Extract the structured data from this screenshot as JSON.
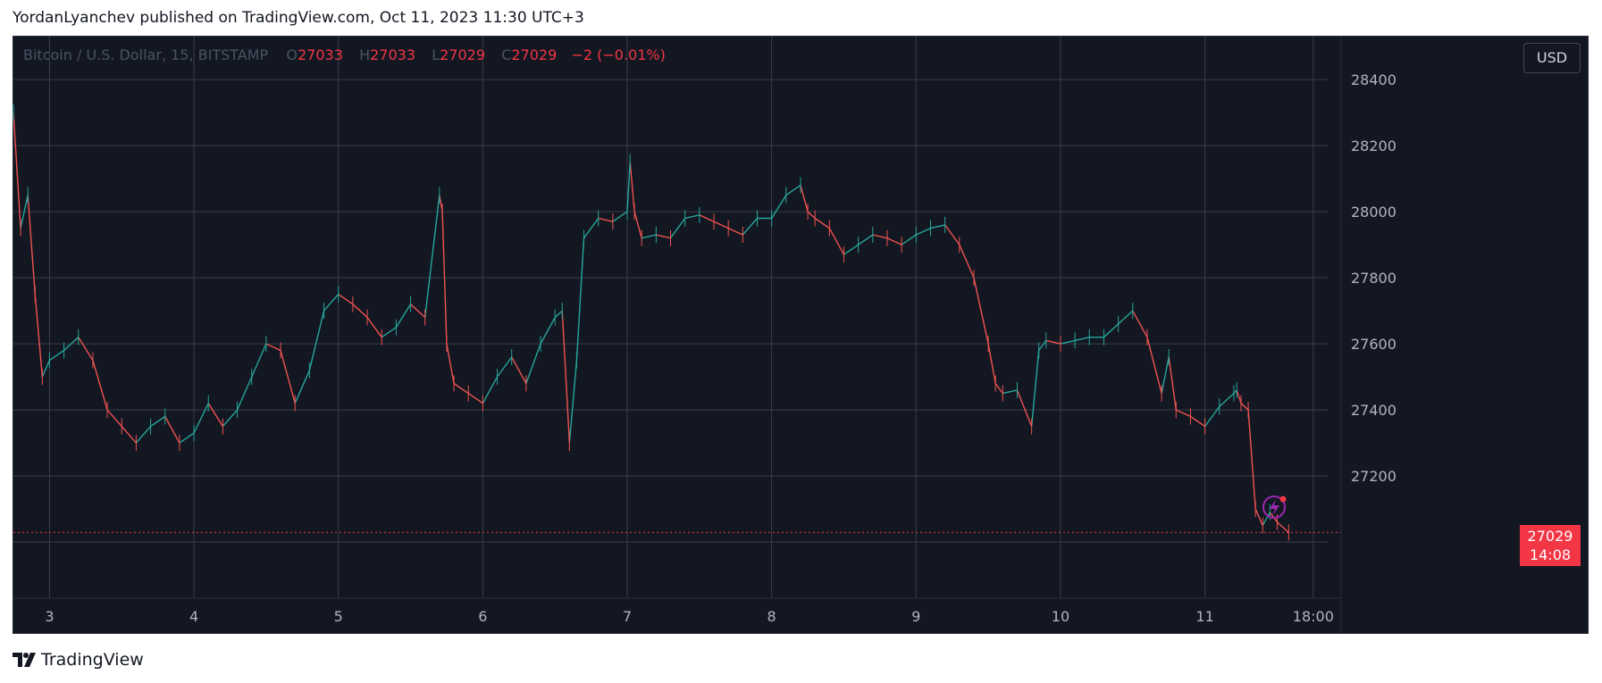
{
  "header": {
    "publisher_line": "YordanLyanchev published on TradingView.com, Oct 11, 2023 11:30 UTC+3"
  },
  "legend": {
    "symbol": "Bitcoin / U.S. Dollar, 15, BITSTAMP",
    "o_label": "O",
    "o_value": "27033",
    "h_label": "H",
    "h_value": "27033",
    "l_label": "L",
    "l_value": "27029",
    "c_label": "C",
    "c_value": "27029",
    "change": "−2 (−0.01%)"
  },
  "currency_button": "USD",
  "price_tag": {
    "price": "27029",
    "countdown": "14:08"
  },
  "footer": {
    "brand": "TradingView"
  },
  "colors": {
    "background": "#131722",
    "up": "#26a69a",
    "down": "#ef5350",
    "grid": "#3a3e4a",
    "accent": "#f23645",
    "lightning": "#9c27b0"
  },
  "chart_data": {
    "type": "line",
    "title": "Bitcoin / U.S. Dollar, 15, BITSTAMP",
    "xlabel": "",
    "ylabel": "",
    "ylim": [
      26830,
      28530
    ],
    "xlim": [
      2.75,
      11.85
    ],
    "grid": true,
    "x_ticks": [
      {
        "x": 3,
        "label": "3"
      },
      {
        "x": 4,
        "label": "4"
      },
      {
        "x": 5,
        "label": "5"
      },
      {
        "x": 6,
        "label": "6"
      },
      {
        "x": 7,
        "label": "7"
      },
      {
        "x": 8,
        "label": "8"
      },
      {
        "x": 9,
        "label": "9"
      },
      {
        "x": 10,
        "label": "10"
      },
      {
        "x": 11,
        "label": "11"
      },
      {
        "x": 11.75,
        "label": "18:00"
      }
    ],
    "y_ticks": [
      27000,
      27200,
      27400,
      27600,
      27800,
      28000,
      28200,
      28400
    ],
    "last_price": 27029,
    "series": [
      {
        "x": [
          2.75,
          2.8,
          2.85,
          2.9,
          2.95,
          3.0,
          3.1,
          3.2,
          3.3,
          3.4,
          3.5,
          3.6,
          3.7,
          3.8,
          3.9,
          4.0,
          4.1,
          4.2,
          4.3,
          4.4,
          4.5,
          4.6,
          4.7,
          4.8,
          4.9,
          5.0,
          5.1,
          5.2,
          5.3,
          5.4,
          5.5,
          5.6,
          5.7,
          5.72,
          5.75,
          5.8,
          5.9,
          6.0,
          6.1,
          6.2,
          6.3,
          6.4,
          6.5,
          6.55,
          6.6,
          6.65,
          6.7,
          6.8,
          6.9,
          7.0,
          7.02,
          7.05,
          7.1,
          7.2,
          7.3,
          7.4,
          7.5,
          7.6,
          7.7,
          7.8,
          7.9,
          8.0,
          8.1,
          8.2,
          8.25,
          8.3,
          8.4,
          8.5,
          8.6,
          8.7,
          8.8,
          8.9,
          9.0,
          9.1,
          9.2,
          9.3,
          9.4,
          9.5,
          9.55,
          9.6,
          9.7,
          9.8,
          9.85,
          9.9,
          10.0,
          10.1,
          10.2,
          10.3,
          10.4,
          10.5,
          10.6,
          10.7,
          10.75,
          10.8,
          10.9,
          11.0,
          11.1,
          11.2,
          11.22,
          11.25,
          11.3,
          11.35,
          11.4,
          11.45,
          11.5,
          11.58
        ],
        "y": [
          28300,
          27950,
          28050,
          27750,
          27500,
          27550,
          27580,
          27620,
          27550,
          27400,
          27350,
          27300,
          27350,
          27380,
          27300,
          27330,
          27420,
          27350,
          27400,
          27500,
          27600,
          27580,
          27420,
          27520,
          27700,
          27750,
          27720,
          27680,
          27620,
          27650,
          27720,
          27680,
          28050,
          28000,
          27600,
          27480,
          27450,
          27420,
          27500,
          27560,
          27480,
          27600,
          27680,
          27700,
          27300,
          27550,
          27920,
          27980,
          27970,
          28000,
          28150,
          28000,
          27920,
          27930,
          27920,
          27980,
          27990,
          27970,
          27950,
          27930,
          27980,
          27980,
          28050,
          28080,
          28000,
          27980,
          27950,
          27870,
          27900,
          27930,
          27920,
          27900,
          27930,
          27950,
          27960,
          27900,
          27800,
          27600,
          27480,
          27450,
          27460,
          27350,
          27580,
          27610,
          27600,
          27610,
          27620,
          27620,
          27660,
          27700,
          27620,
          27450,
          27560,
          27400,
          27380,
          27350,
          27410,
          27450,
          27460,
          27420,
          27400,
          27100,
          27050,
          27090,
          27060,
          27029
        ]
      }
    ]
  }
}
